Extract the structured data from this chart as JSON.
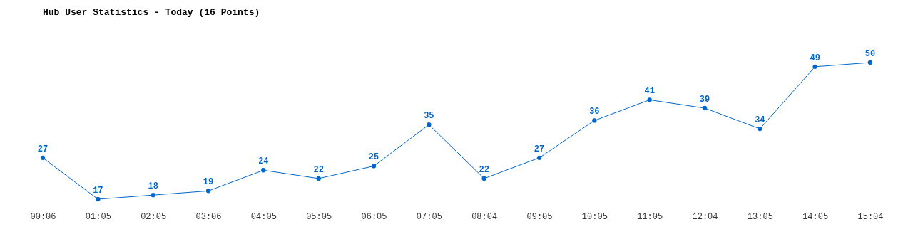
{
  "chart_data": {
    "type": "line",
    "title": "Hub User Statistics - Today (16 Points)",
    "categories": [
      "00:06",
      "01:05",
      "02:05",
      "03:06",
      "04:05",
      "05:05",
      "06:05",
      "07:05",
      "08:04",
      "09:05",
      "10:05",
      "11:05",
      "12:04",
      "13:05",
      "14:05",
      "15:04"
    ],
    "series": [
      {
        "color": "#0066cc",
        "values": [
          27,
          17,
          18,
          19,
          24,
          22,
          25,
          35,
          22,
          27,
          36,
          41,
          39,
          34,
          49,
          50
        ]
      }
    ],
    "data_labels": true,
    "marker": "circle",
    "grid": false,
    "legend": false
  }
}
